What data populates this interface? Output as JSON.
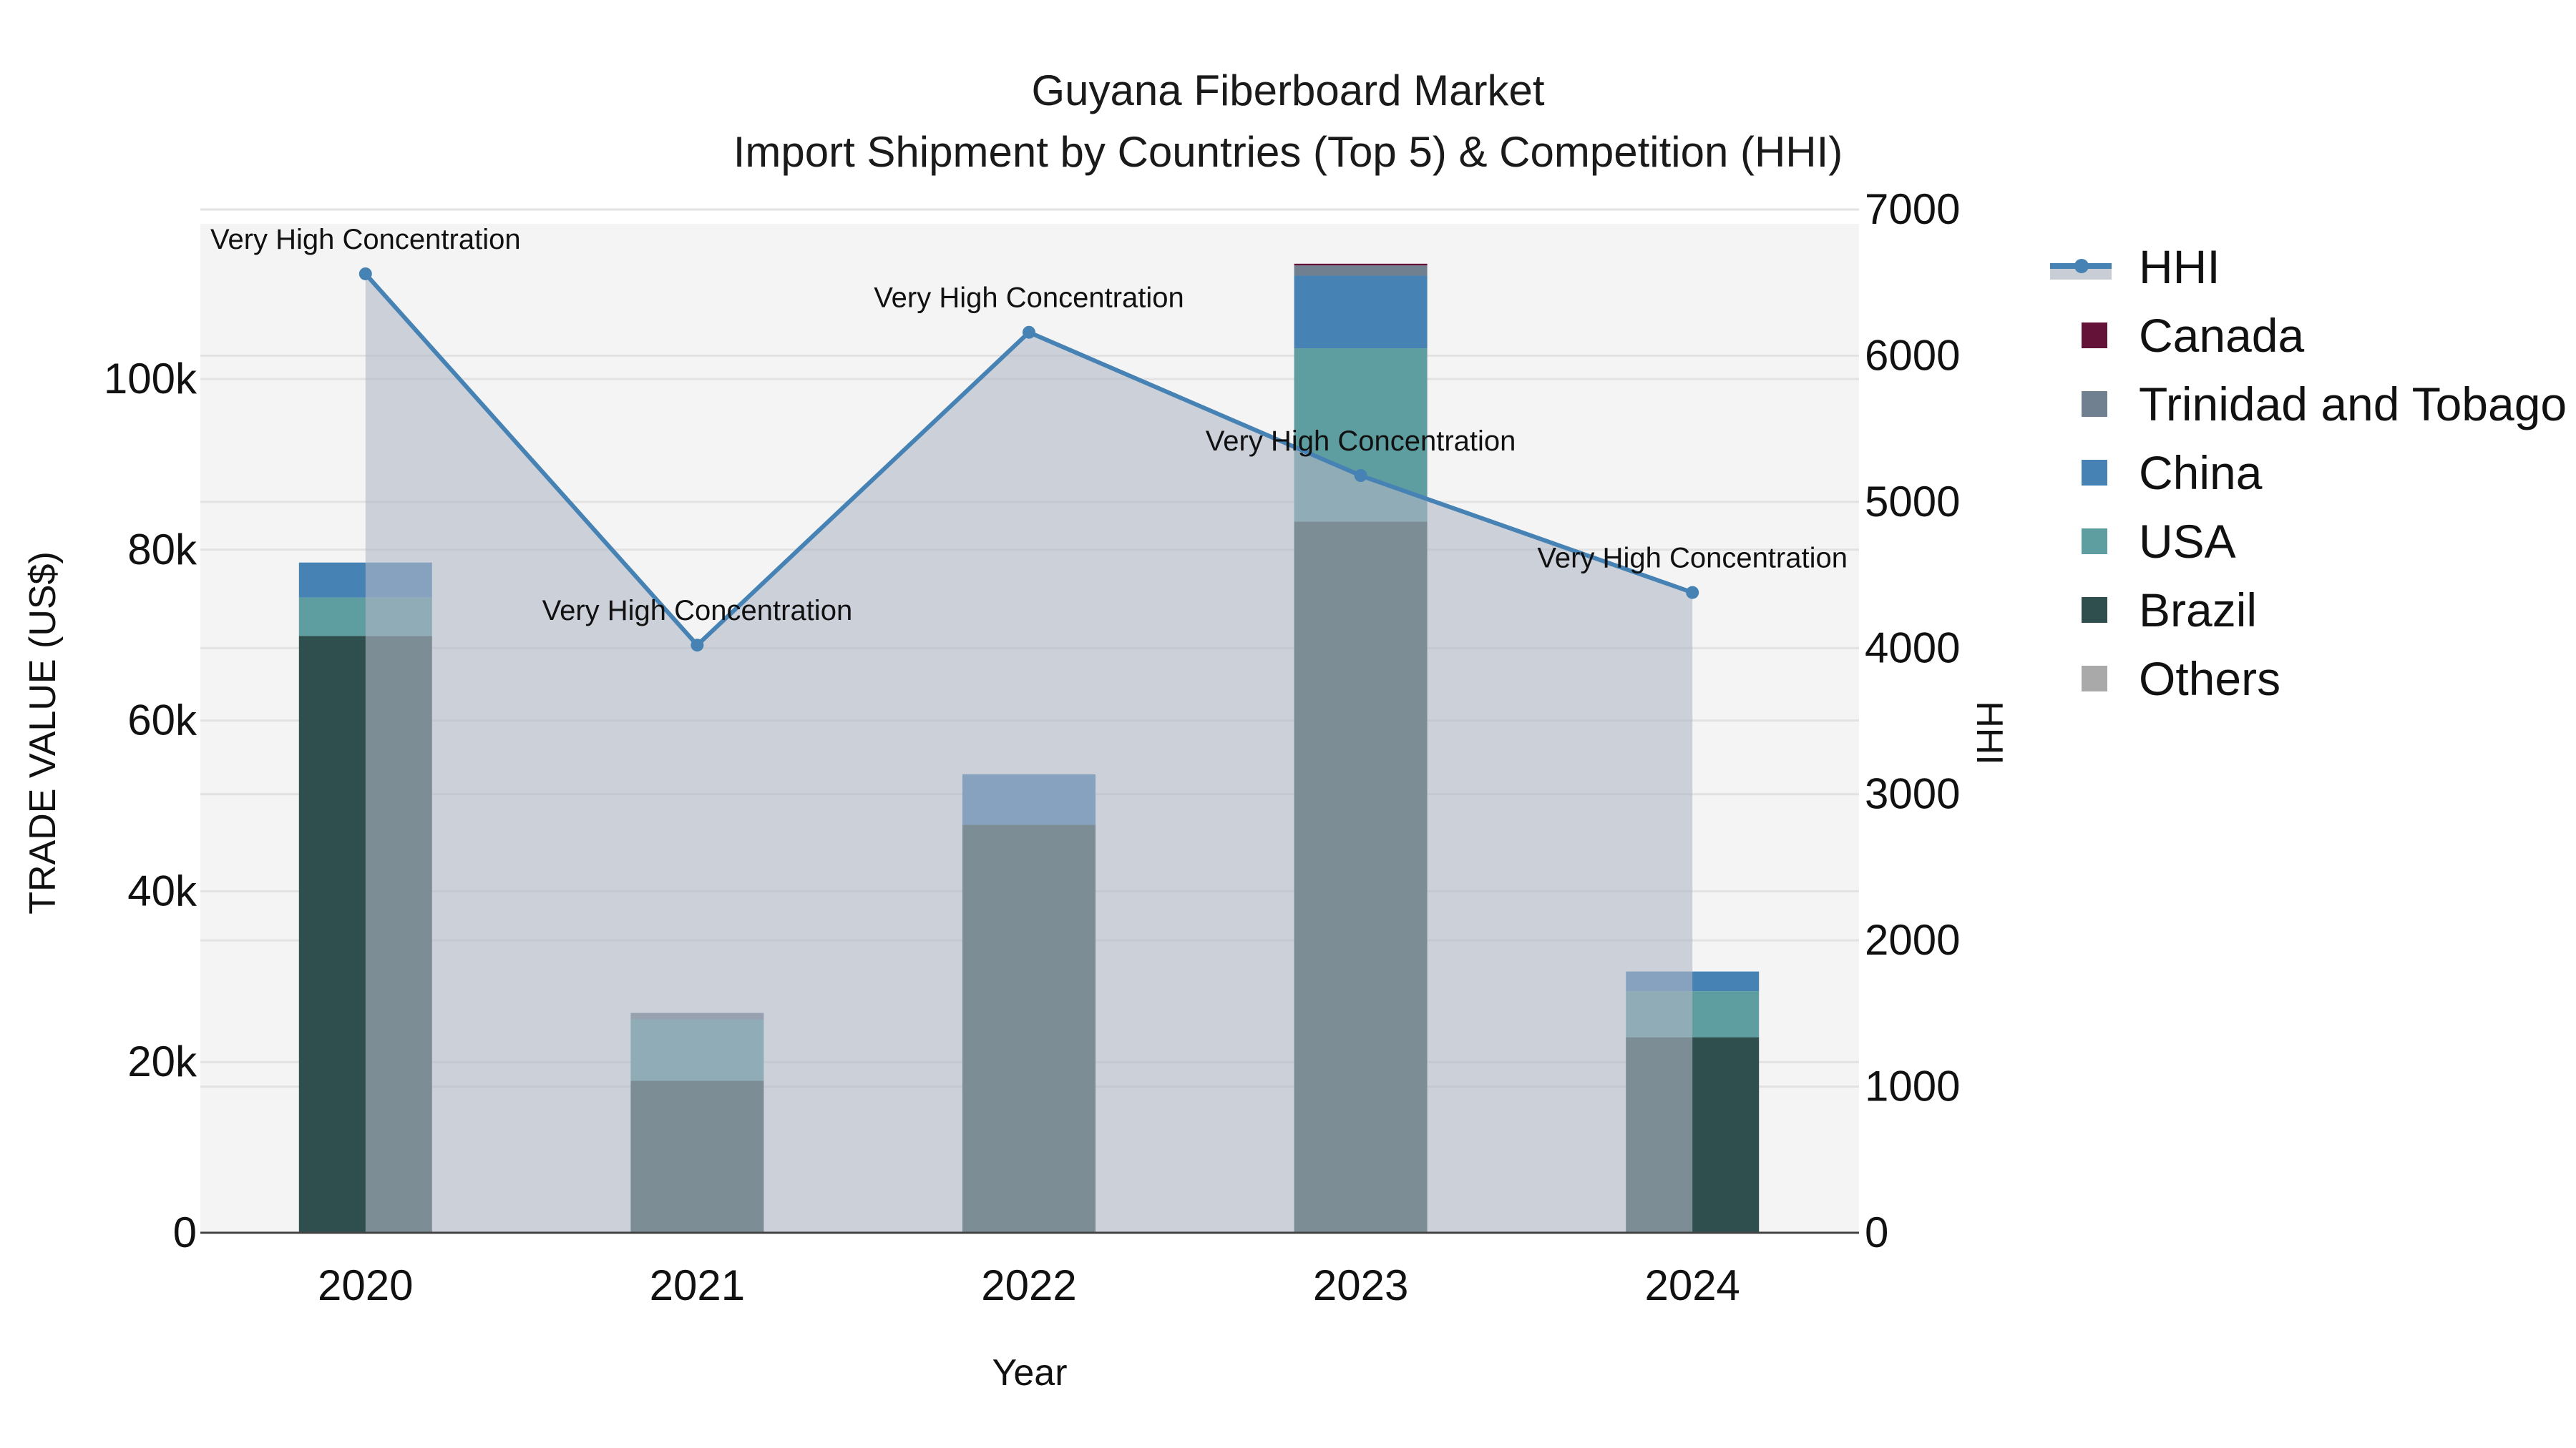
{
  "header": {
    "title_line1": "Guyana Fiberboard Market",
    "title_line2": "Import Shipment by Countries (Top 5) & Competition (HHI)"
  },
  "axes": {
    "x_title": "Year",
    "y_left_title": "TRADE VALUE (US$)",
    "y_right_title": "HHI",
    "y_left_ticks": [
      "0",
      "20k",
      "40k",
      "60k",
      "80k",
      "100k"
    ],
    "y_right_ticks": [
      "0",
      "1000",
      "2000",
      "3000",
      "4000",
      "5000",
      "6000",
      "7000"
    ],
    "x_ticks": [
      "2020",
      "2021",
      "2022",
      "2023",
      "2024"
    ]
  },
  "legend": {
    "items": [
      {
        "label": "HHI",
        "type": "line",
        "color": "#4682b4"
      },
      {
        "label": "Canada",
        "type": "bar",
        "color": "#641237"
      },
      {
        "label": "Trinidad and Tobago",
        "type": "bar",
        "color": "#708090"
      },
      {
        "label": "China",
        "type": "bar",
        "color": "#4682b4"
      },
      {
        "label": "USA",
        "type": "bar",
        "color": "#5f9ea0"
      },
      {
        "label": "Brazil",
        "type": "bar",
        "color": "#2f4f4f"
      },
      {
        "label": "Others",
        "type": "bar",
        "color": "#a9a9a9"
      }
    ]
  },
  "annotations": [
    {
      "year": "2020",
      "text": "Very High Concentration"
    },
    {
      "year": "2021",
      "text": "Very High Concentration"
    },
    {
      "year": "2022",
      "text": "Very High Concentration"
    },
    {
      "year": "2023",
      "text": "Very High Concentration"
    },
    {
      "year": "2024",
      "text": "Very High Concentration"
    }
  ],
  "chart_data": {
    "type": "bar",
    "title": "Guyana Fiberboard Market — Import Shipment by Countries (Top 5) & Competition (HHI)",
    "xlabel": "Year",
    "ylabel": "TRADE VALUE (US$)",
    "y2label": "HHI",
    "categories": [
      "2020",
      "2021",
      "2022",
      "2023",
      "2024"
    ],
    "stacked": true,
    "ylim": [
      0,
      118000
    ],
    "y2lim": [
      0,
      7200
    ],
    "series": [
      {
        "name": "Brazil",
        "color": "#2f4f4f",
        "values": [
          69900,
          17800,
          47800,
          83300,
          22900
        ]
      },
      {
        "name": "USA",
        "color": "#5f9ea0",
        "values": [
          4500,
          7200,
          0,
          20300,
          5400
        ]
      },
      {
        "name": "China",
        "color": "#4682b4",
        "values": [
          4100,
          0,
          5900,
          8500,
          2300
        ]
      },
      {
        "name": "Trinidad and Tobago",
        "color": "#708090",
        "values": [
          0,
          750,
          0,
          1200,
          0
        ]
      },
      {
        "name": "Canada",
        "color": "#641237",
        "values": [
          0,
          0,
          0,
          200,
          0
        ]
      },
      {
        "name": "Others",
        "color": "#a9a9a9",
        "values": [
          0,
          0,
          0,
          0,
          0
        ]
      }
    ],
    "line_series": {
      "name": "HHI",
      "axis": "right",
      "color": "#4682b4",
      "fill": "tozeroy",
      "values": [
        6560,
        4020,
        6160,
        5180,
        4380
      ],
      "labels": [
        "Very High Concentration",
        "Very High Concentration",
        "Very High Concentration",
        "Very High Concentration",
        "Very High Concentration"
      ]
    },
    "legend_position": "right",
    "grid": true
  }
}
